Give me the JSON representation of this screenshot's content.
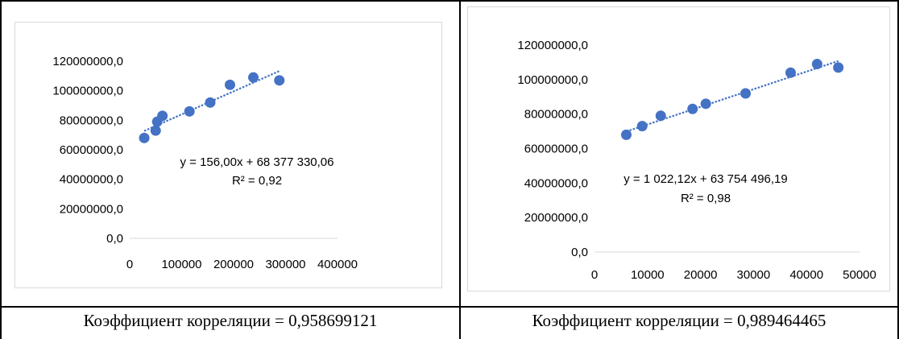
{
  "charts": [
    {
      "chart_data": {
        "type": "scatter",
        "x": [
          28000,
          50000,
          53000,
          63000,
          115000,
          155000,
          193000,
          238000,
          288000
        ],
        "y": [
          68000000,
          73000000,
          79000000,
          83000000,
          86000000,
          92000000,
          104000000,
          109000000,
          107000000
        ],
        "xlim": [
          0,
          400000
        ],
        "ylim": [
          0,
          120000000
        ],
        "xticks": [
          "0",
          "100000",
          "200000",
          "300000",
          "400000"
        ],
        "yticks": [
          "0,0",
          "20000000,0",
          "40000000,0",
          "60000000,0",
          "80000000,0",
          "100000000,0",
          "120000000,0"
        ],
        "trendline": {
          "slope": 156.0,
          "intercept": 68377330.06,
          "x_range": [
            28000,
            288000
          ]
        },
        "equation": "y = 156,00x + 68 377 330,06",
        "r2": "R² = 0,92",
        "grid": false,
        "marker_color": "#4472c4"
      },
      "caption": "Коэффициент корреляции = 0,958699121"
    },
    {
      "chart_data": {
        "type": "scatter",
        "x": [
          6000,
          9000,
          12500,
          18500,
          21000,
          28500,
          37000,
          42000,
          46000
        ],
        "y": [
          68000000,
          73000000,
          79000000,
          83000000,
          86000000,
          92000000,
          104000000,
          109000000,
          107000000
        ],
        "xlim": [
          0,
          50000
        ],
        "ylim": [
          0,
          120000000
        ],
        "xticks": [
          "0",
          "10000",
          "20000",
          "30000",
          "40000",
          "50000"
        ],
        "yticks": [
          "0,0",
          "20000000,0",
          "40000000,0",
          "60000000,0",
          "80000000,0",
          "100000000,0",
          "120000000,0"
        ],
        "trendline": {
          "slope": 1022.12,
          "intercept": 63754496.19,
          "x_range": [
            6000,
            46000
          ]
        },
        "equation": "y = 1 022,12x + 63 754 496,19",
        "r2": "R² = 0,98",
        "grid": false,
        "marker_color": "#4472c4"
      },
      "caption": "Коэффициент корреляции = 0,989464465"
    }
  ]
}
